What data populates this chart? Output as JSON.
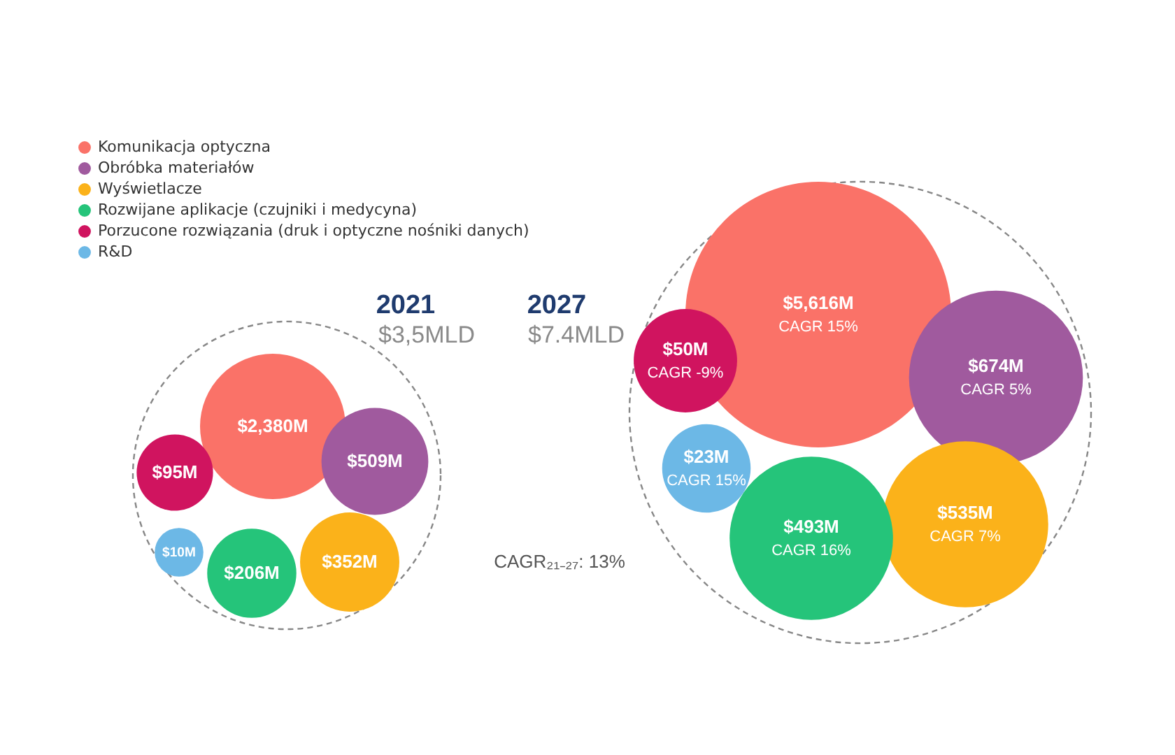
{
  "chart_data": {
    "type": "other",
    "legend": "top left",
    "categories": [
      "2021",
      "2027"
    ],
    "series": [
      {
        "name": "Komunikacja optyczna",
        "color": "#fa7268",
        "values": [
          2380,
          5616
        ],
        "value_labels": [
          "$2,380M",
          "$5,616M"
        ]
      },
      {
        "name": "Obróbka materiałów",
        "color": "#a05a9e",
        "values": [
          509,
          674
        ],
        "value_labels": [
          "$509M",
          "$674M"
        ]
      },
      {
        "name": "Wyświetlacze",
        "color": "#fbb21a",
        "values": [
          352,
          535
        ],
        "value_labels": [
          "$352M",
          "$535M"
        ]
      },
      {
        "name": "Rozwijane aplikacje (czujniki i medycyna)",
        "color": "#25c47a",
        "values": [
          206,
          493
        ],
        "value_labels": [
          "$206M",
          "$493M"
        ]
      },
      {
        "name": "Porzucone rozwiązania (druk i optyczne nośniki danych)",
        "color": "#d0145f",
        "values": [
          95,
          50
        ],
        "value_labels": [
          "$95M",
          "$50M"
        ]
      },
      {
        "name": "R&D",
        "color": "#6cb8e6",
        "values": [
          10,
          23
        ],
        "value_labels": [
          "$10M",
          "$23M"
        ]
      }
    ],
    "annotations": [
      "$3,5MLD",
      "$7.4MLD",
      "CAGR₂₁₋₂₇: 13%",
      "CAGR 15%",
      "CAGR 5%",
      "CAGR 7%",
      "CAGR 16%",
      "CAGR -9%",
      "CAGR 15%"
    ]
  }
}
